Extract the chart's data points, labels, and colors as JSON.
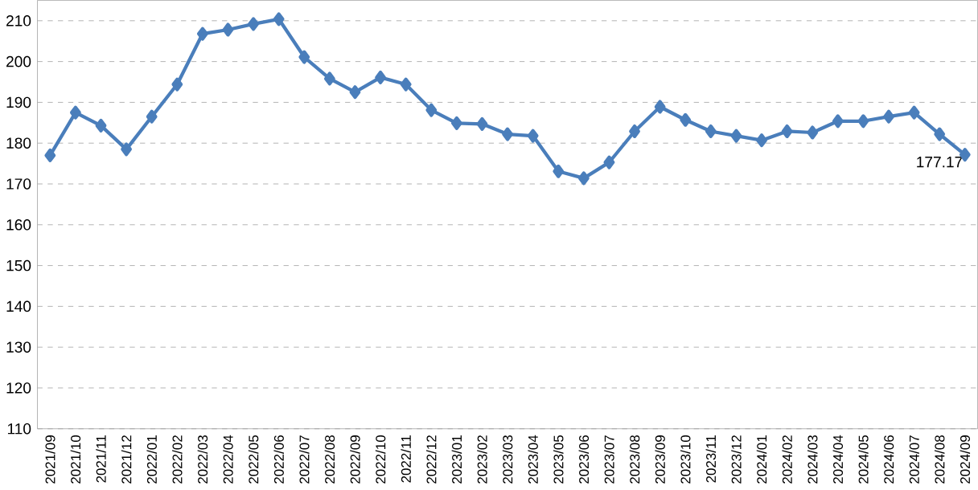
{
  "chart_data": {
    "type": "line",
    "categories": [
      "2021/09",
      "2021/10",
      "2021/11",
      "2021/12",
      "2022/01",
      "2022/02",
      "2022/03",
      "2022/04",
      "2022/05",
      "2022/06",
      "2022/07",
      "2022/08",
      "2022/09",
      "2022/10",
      "2022/11",
      "2022/12",
      "2023/01",
      "2023/02",
      "2023/03",
      "2023/04",
      "2023/05",
      "2023/06",
      "2023/07",
      "2023/08",
      "2023/09",
      "2023/10",
      "2023/11",
      "2023/12",
      "2024/01",
      "2024/02",
      "2024/03",
      "2024/04",
      "2024/05",
      "2024/06",
      "2024/07",
      "2024/08",
      "2024/09"
    ],
    "series": [
      {
        "color": "#4a7ebb",
        "values": [
          177,
          187.5,
          184.3,
          178.5,
          186.5,
          194.4,
          206.8,
          207.8,
          209.2,
          210.4,
          201.1,
          195.8,
          192.5,
          196.1,
          194.4,
          188.1,
          184.9,
          184.7,
          182.2,
          181.8,
          173.1,
          171.4,
          175.3,
          182.9,
          188.9,
          185.7,
          182.9,
          181.8,
          180.7,
          182.9,
          182.6,
          185.4,
          185.4,
          186.5,
          187.5,
          182.2,
          177.17
        ],
        "value_labels": [
          null,
          null,
          null,
          null,
          null,
          null,
          null,
          null,
          null,
          null,
          null,
          null,
          null,
          null,
          null,
          null,
          null,
          null,
          null,
          null,
          null,
          null,
          null,
          null,
          null,
          null,
          null,
          null,
          null,
          null,
          null,
          null,
          null,
          null,
          null,
          null,
          "177.17"
        ]
      }
    ],
    "ylim": [
      110,
      215
    ],
    "yticks": [
      110,
      120,
      130,
      140,
      150,
      160,
      170,
      180,
      190,
      200,
      210
    ],
    "grid": "y",
    "marker": "diamond",
    "line_style": "solid"
  }
}
